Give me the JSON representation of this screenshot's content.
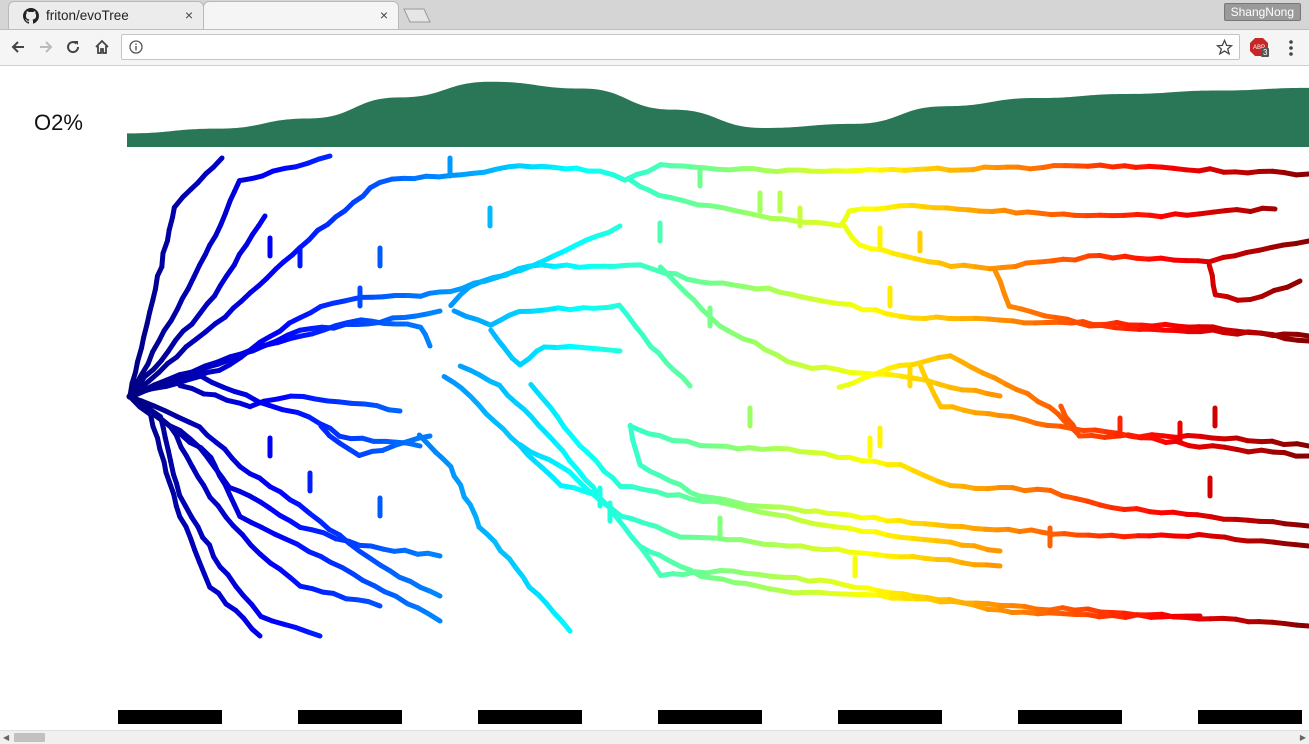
{
  "browser": {
    "tabs": [
      {
        "title": "friton/evoTree",
        "close": "×",
        "active": false,
        "favicon": "github-icon"
      },
      {
        "title": "",
        "close": "×",
        "active": true
      }
    ],
    "profile_name": "ShangNong",
    "url": "",
    "extension_badge": "3",
    "extension_label": "ABP"
  },
  "page": {
    "o2_label": "O2%",
    "o2_color": "#2a7757",
    "o2_profile": [
      0.2,
      0.27,
      0.42,
      0.73,
      0.96,
      0.86,
      0.55,
      0.28,
      0.34,
      0.6,
      0.72,
      0.78,
      0.83,
      0.87
    ],
    "time_bar_count": 7,
    "colormap": "jet"
  }
}
